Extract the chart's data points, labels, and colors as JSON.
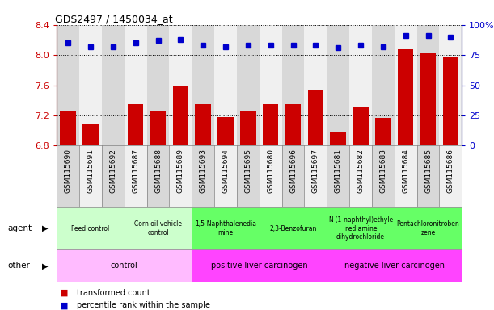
{
  "title": "GDS2497 / 1450034_at",
  "samples": [
    "GSM115690",
    "GSM115691",
    "GSM115692",
    "GSM115687",
    "GSM115688",
    "GSM115689",
    "GSM115693",
    "GSM115694",
    "GSM115695",
    "GSM115680",
    "GSM115696",
    "GSM115697",
    "GSM115681",
    "GSM115682",
    "GSM115683",
    "GSM115684",
    "GSM115685",
    "GSM115686"
  ],
  "transformed_count": [
    7.26,
    7.08,
    6.82,
    7.35,
    7.25,
    7.58,
    7.35,
    7.18,
    7.25,
    7.35,
    7.35,
    7.54,
    6.98,
    7.31,
    7.17,
    8.08,
    8.02,
    7.98
  ],
  "percentile_rank": [
    85,
    82,
    82,
    85,
    87,
    88,
    83,
    82,
    83,
    83,
    83,
    83,
    81,
    83,
    82,
    91,
    91,
    90
  ],
  "ylim_left": [
    6.8,
    8.4
  ],
  "ylim_right": [
    0,
    100
  ],
  "yticks_left": [
    6.8,
    7.2,
    7.6,
    8.0,
    8.4
  ],
  "yticks_right": [
    0,
    25,
    50,
    75,
    100
  ],
  "ytick_labels_right": [
    "0",
    "25",
    "50",
    "75",
    "100%"
  ],
  "bar_color": "#cc0000",
  "dot_color": "#0000cc",
  "grid_color": "#000000",
  "col_bg_even": "#d8d8d8",
  "col_bg_odd": "#f0f0f0",
  "agent_groups": [
    {
      "label": "Feed control",
      "start": 0,
      "end": 3,
      "color": "#ccffcc"
    },
    {
      "label": "Corn oil vehicle\ncontrol",
      "start": 3,
      "end": 6,
      "color": "#ccffcc"
    },
    {
      "label": "1,5-Naphthalenedia\nmine",
      "start": 6,
      "end": 9,
      "color": "#66ff66"
    },
    {
      "label": "2,3-Benzofuran",
      "start": 9,
      "end": 12,
      "color": "#66ff66"
    },
    {
      "label": "N-(1-naphthyl)ethyle\nnediamine\ndihydrochloride",
      "start": 12,
      "end": 15,
      "color": "#66ff66"
    },
    {
      "label": "Pentachloronitroben\nzene",
      "start": 15,
      "end": 18,
      "color": "#66ff66"
    }
  ],
  "other_groups": [
    {
      "label": "control",
      "start": 0,
      "end": 6,
      "color": "#ffbbff"
    },
    {
      "label": "positive liver carcinogen",
      "start": 6,
      "end": 12,
      "color": "#ff44ff"
    },
    {
      "label": "negative liver carcinogen",
      "start": 12,
      "end": 18,
      "color": "#ff44ff"
    }
  ],
  "agent_row_label": "agent",
  "other_row_label": "other",
  "legend_items": [
    {
      "label": "transformed count",
      "color": "#cc0000"
    },
    {
      "label": "percentile rank within the sample",
      "color": "#0000cc"
    }
  ]
}
